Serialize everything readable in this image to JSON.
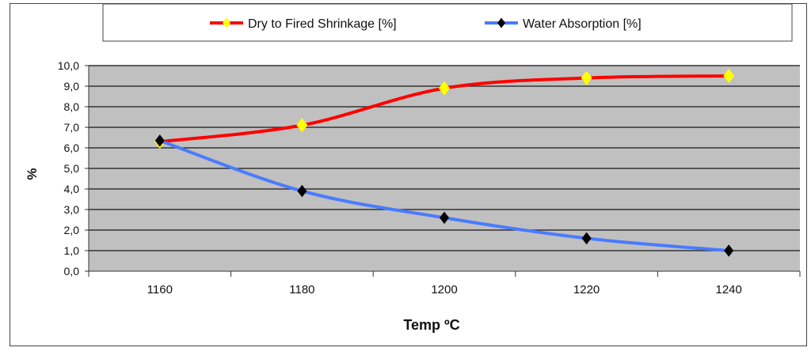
{
  "chart_data": {
    "type": "line",
    "title": "",
    "xlabel": "Temp ºC",
    "ylabel": "%",
    "categories": [
      "1160",
      "1180",
      "1200",
      "1220",
      "1240"
    ],
    "ylim": [
      0,
      10
    ],
    "yticks": [
      "0,0",
      "1,0",
      "2,0",
      "3,0",
      "4,0",
      "5,0",
      "6,0",
      "7,0",
      "8,0",
      "9,0",
      "10,0"
    ],
    "grid": true,
    "legend_position": "top",
    "series": [
      {
        "name": "Dry to Fired Shrinkage [%]",
        "color": "#ff0000",
        "marker_color": "#ffff00",
        "values": [
          6.3,
          7.1,
          8.9,
          9.4,
          9.5
        ]
      },
      {
        "name": "Water Absorption [%]",
        "color": "#4a7bff",
        "marker_color": "#000000",
        "values": [
          6.35,
          3.9,
          2.6,
          1.6,
          1.0
        ]
      }
    ]
  }
}
